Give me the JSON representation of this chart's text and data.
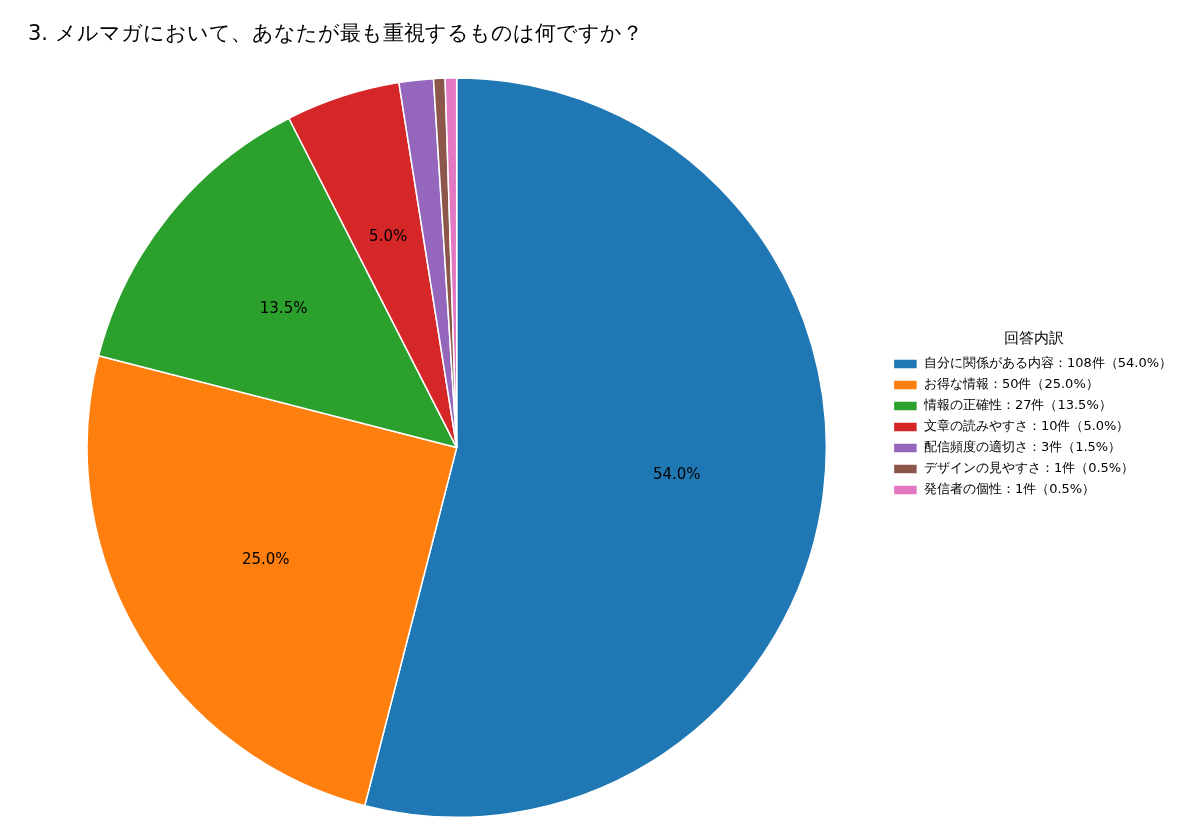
{
  "chart_data": {
    "type": "pie",
    "title": "3. メルマガにおいて、あなたが最も重視するものは何ですか？",
    "legend_title": "回答内訳",
    "categories": [
      "自分に関係がある内容：108件（54.0%）",
      "お得な情報：50件（25.0%）",
      "情報の正確性：27件（13.5%）",
      "文章の読みやすさ：10件（5.0%）",
      "配信頻度の適切さ：3件（1.5%）",
      "デザインの見やすさ：1件（0.5%）",
      "発信者の個性：1件（0.5%）"
    ],
    "values": [
      54.0,
      25.0,
      13.5,
      5.0,
      1.5,
      0.5,
      0.5
    ],
    "colors": [
      "#1f77b4",
      "#ff7f0e",
      "#2ca02c",
      "#d62728",
      "#9467bd",
      "#8c564b",
      "#e377c2"
    ],
    "value_labels": [
      "54.0%",
      "25.0%",
      "13.5%",
      "5.0%",
      null,
      null,
      null
    ],
    "legend": "right"
  }
}
